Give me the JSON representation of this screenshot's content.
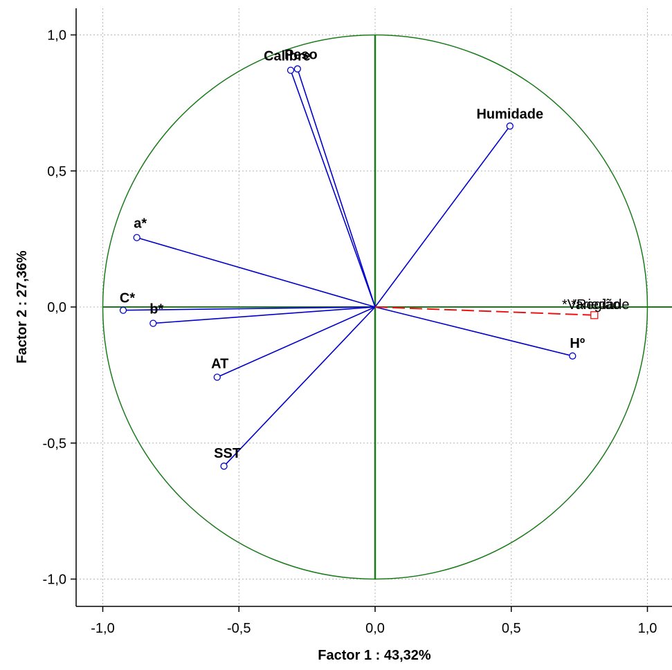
{
  "chart_data": {
    "type": "scatter",
    "xlabel": "Factor 1 : 43,32%",
    "ylabel": "Factor 2 : 27,36%",
    "xlim": [
      -1.1,
      1.1
    ],
    "ylim": [
      -1.1,
      1.1
    ],
    "x_ticks": [
      -1.0,
      -0.5,
      0.0,
      0.5,
      1.0
    ],
    "y_ticks": [
      -1.0,
      -0.5,
      0.0,
      0.5,
      1.0
    ],
    "x_tick_labels": [
      "-1,0",
      "-0,5",
      "0,0",
      "0,5",
      "1,0"
    ],
    "y_tick_labels": [
      "-1,0",
      "-0,5",
      "0,0",
      "0,5",
      "1,0"
    ],
    "grid": true,
    "unit_circle": true,
    "colors": {
      "axes_and_circle": "#1a7a1a",
      "active": "#0000cc",
      "supplementary": "#ee1111"
    },
    "active_variables": [
      {
        "name": "Calibre",
        "x": -0.31,
        "y": 0.87
      },
      {
        "name": "Peso",
        "x": -0.285,
        "y": 0.875
      },
      {
        "name": "Humidade",
        "x": 0.495,
        "y": 0.665
      },
      {
        "name": "a*",
        "x": -0.875,
        "y": 0.255
      },
      {
        "name": "C*",
        "x": -0.925,
        "y": -0.012
      },
      {
        "name": "b*",
        "x": -0.815,
        "y": -0.06
      },
      {
        "name": "AT",
        "x": -0.58,
        "y": -0.258
      },
      {
        "name": "SST",
        "x": -0.555,
        "y": -0.585
      },
      {
        "name": "Hº",
        "x": 0.725,
        "y": -0.18
      }
    ],
    "supplementary_variables": [
      {
        "name": "*Variedade",
        "x": 0.805,
        "y": -0.03
      },
      {
        "name": "*Região",
        "x": 0.805,
        "y": -0.03
      }
    ]
  }
}
